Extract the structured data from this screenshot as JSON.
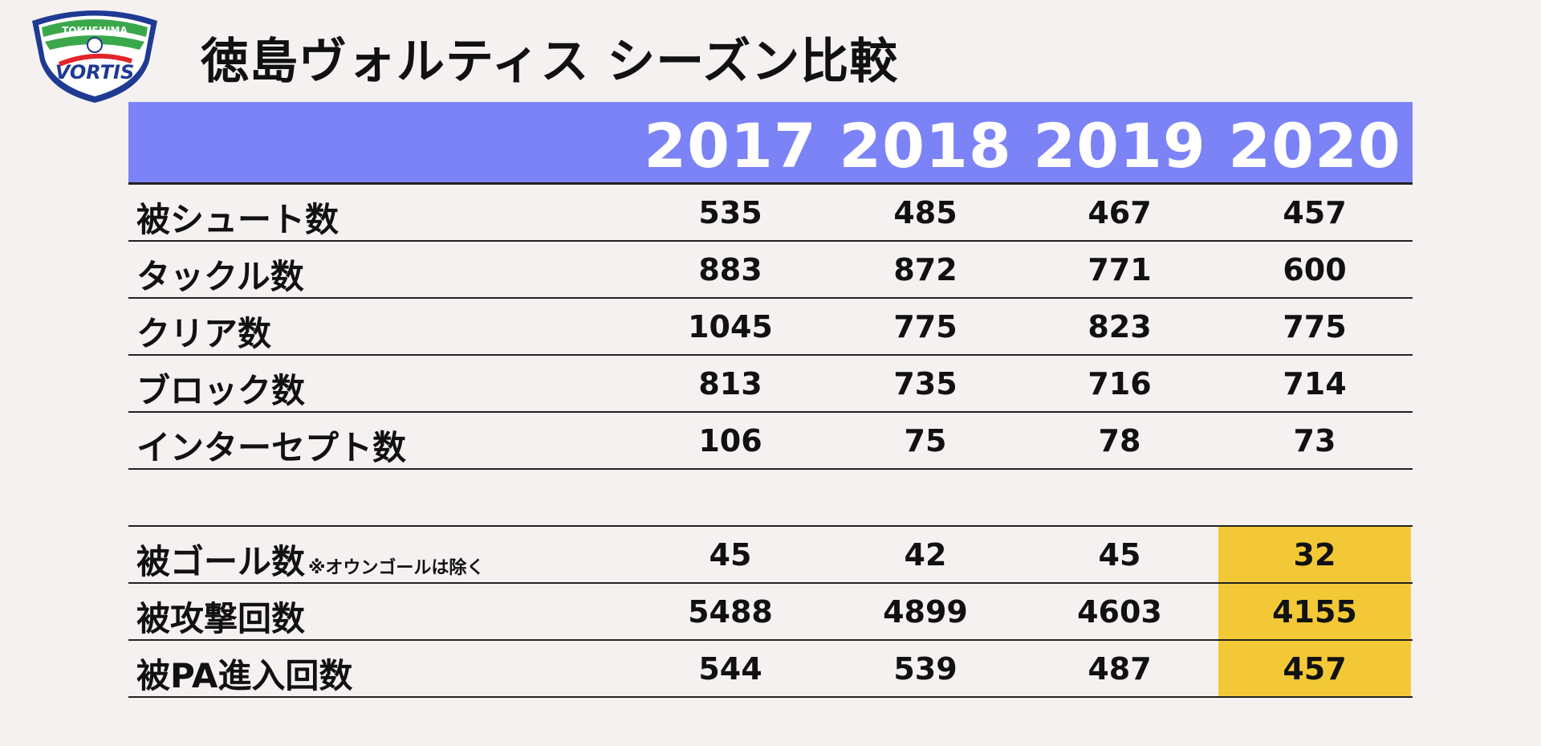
{
  "logo": {
    "top_text": "TOKUSHIMA",
    "main_text": "VORTIS",
    "colors": {
      "navy": "#1f3a93",
      "green": "#3aa84a",
      "red": "#e2242b"
    }
  },
  "title": "徳島ヴォルティス シーズン比較",
  "colors": {
    "header_bg": "#7b83f7",
    "highlight": "#f2c837",
    "page_bg": "#f5f1f0"
  },
  "chart_data": {
    "type": "table",
    "title": "徳島ヴォルティス シーズン比較",
    "columns": [
      "2017",
      "2018",
      "2019",
      "2020"
    ],
    "group1": [
      {
        "label": "被シュート数",
        "note": "",
        "values": [
          "535",
          "485",
          "467",
          "457"
        ]
      },
      {
        "label": "タックル数",
        "note": "",
        "values": [
          "883",
          "872",
          "771",
          "600"
        ]
      },
      {
        "label": "クリア数",
        "note": "",
        "values": [
          "1045",
          "775",
          "823",
          "775"
        ]
      },
      {
        "label": "ブロック数",
        "note": "",
        "values": [
          "813",
          "735",
          "716",
          "714"
        ]
      },
      {
        "label": "インターセプト数",
        "note": "",
        "values": [
          "106",
          "75",
          "78",
          "73"
        ]
      }
    ],
    "group2": [
      {
        "label": "被ゴール数",
        "note": "※オウンゴールは除く",
        "values": [
          "45",
          "42",
          "45",
          "32"
        ]
      },
      {
        "label": "被攻撃回数",
        "note": "",
        "values": [
          "5488",
          "4899",
          "4603",
          "4155"
        ]
      },
      {
        "label": "被PA進入回数",
        "note": "",
        "values": [
          "544",
          "539",
          "487",
          "457"
        ]
      }
    ],
    "highlighted_column_in_group2": "2020"
  }
}
